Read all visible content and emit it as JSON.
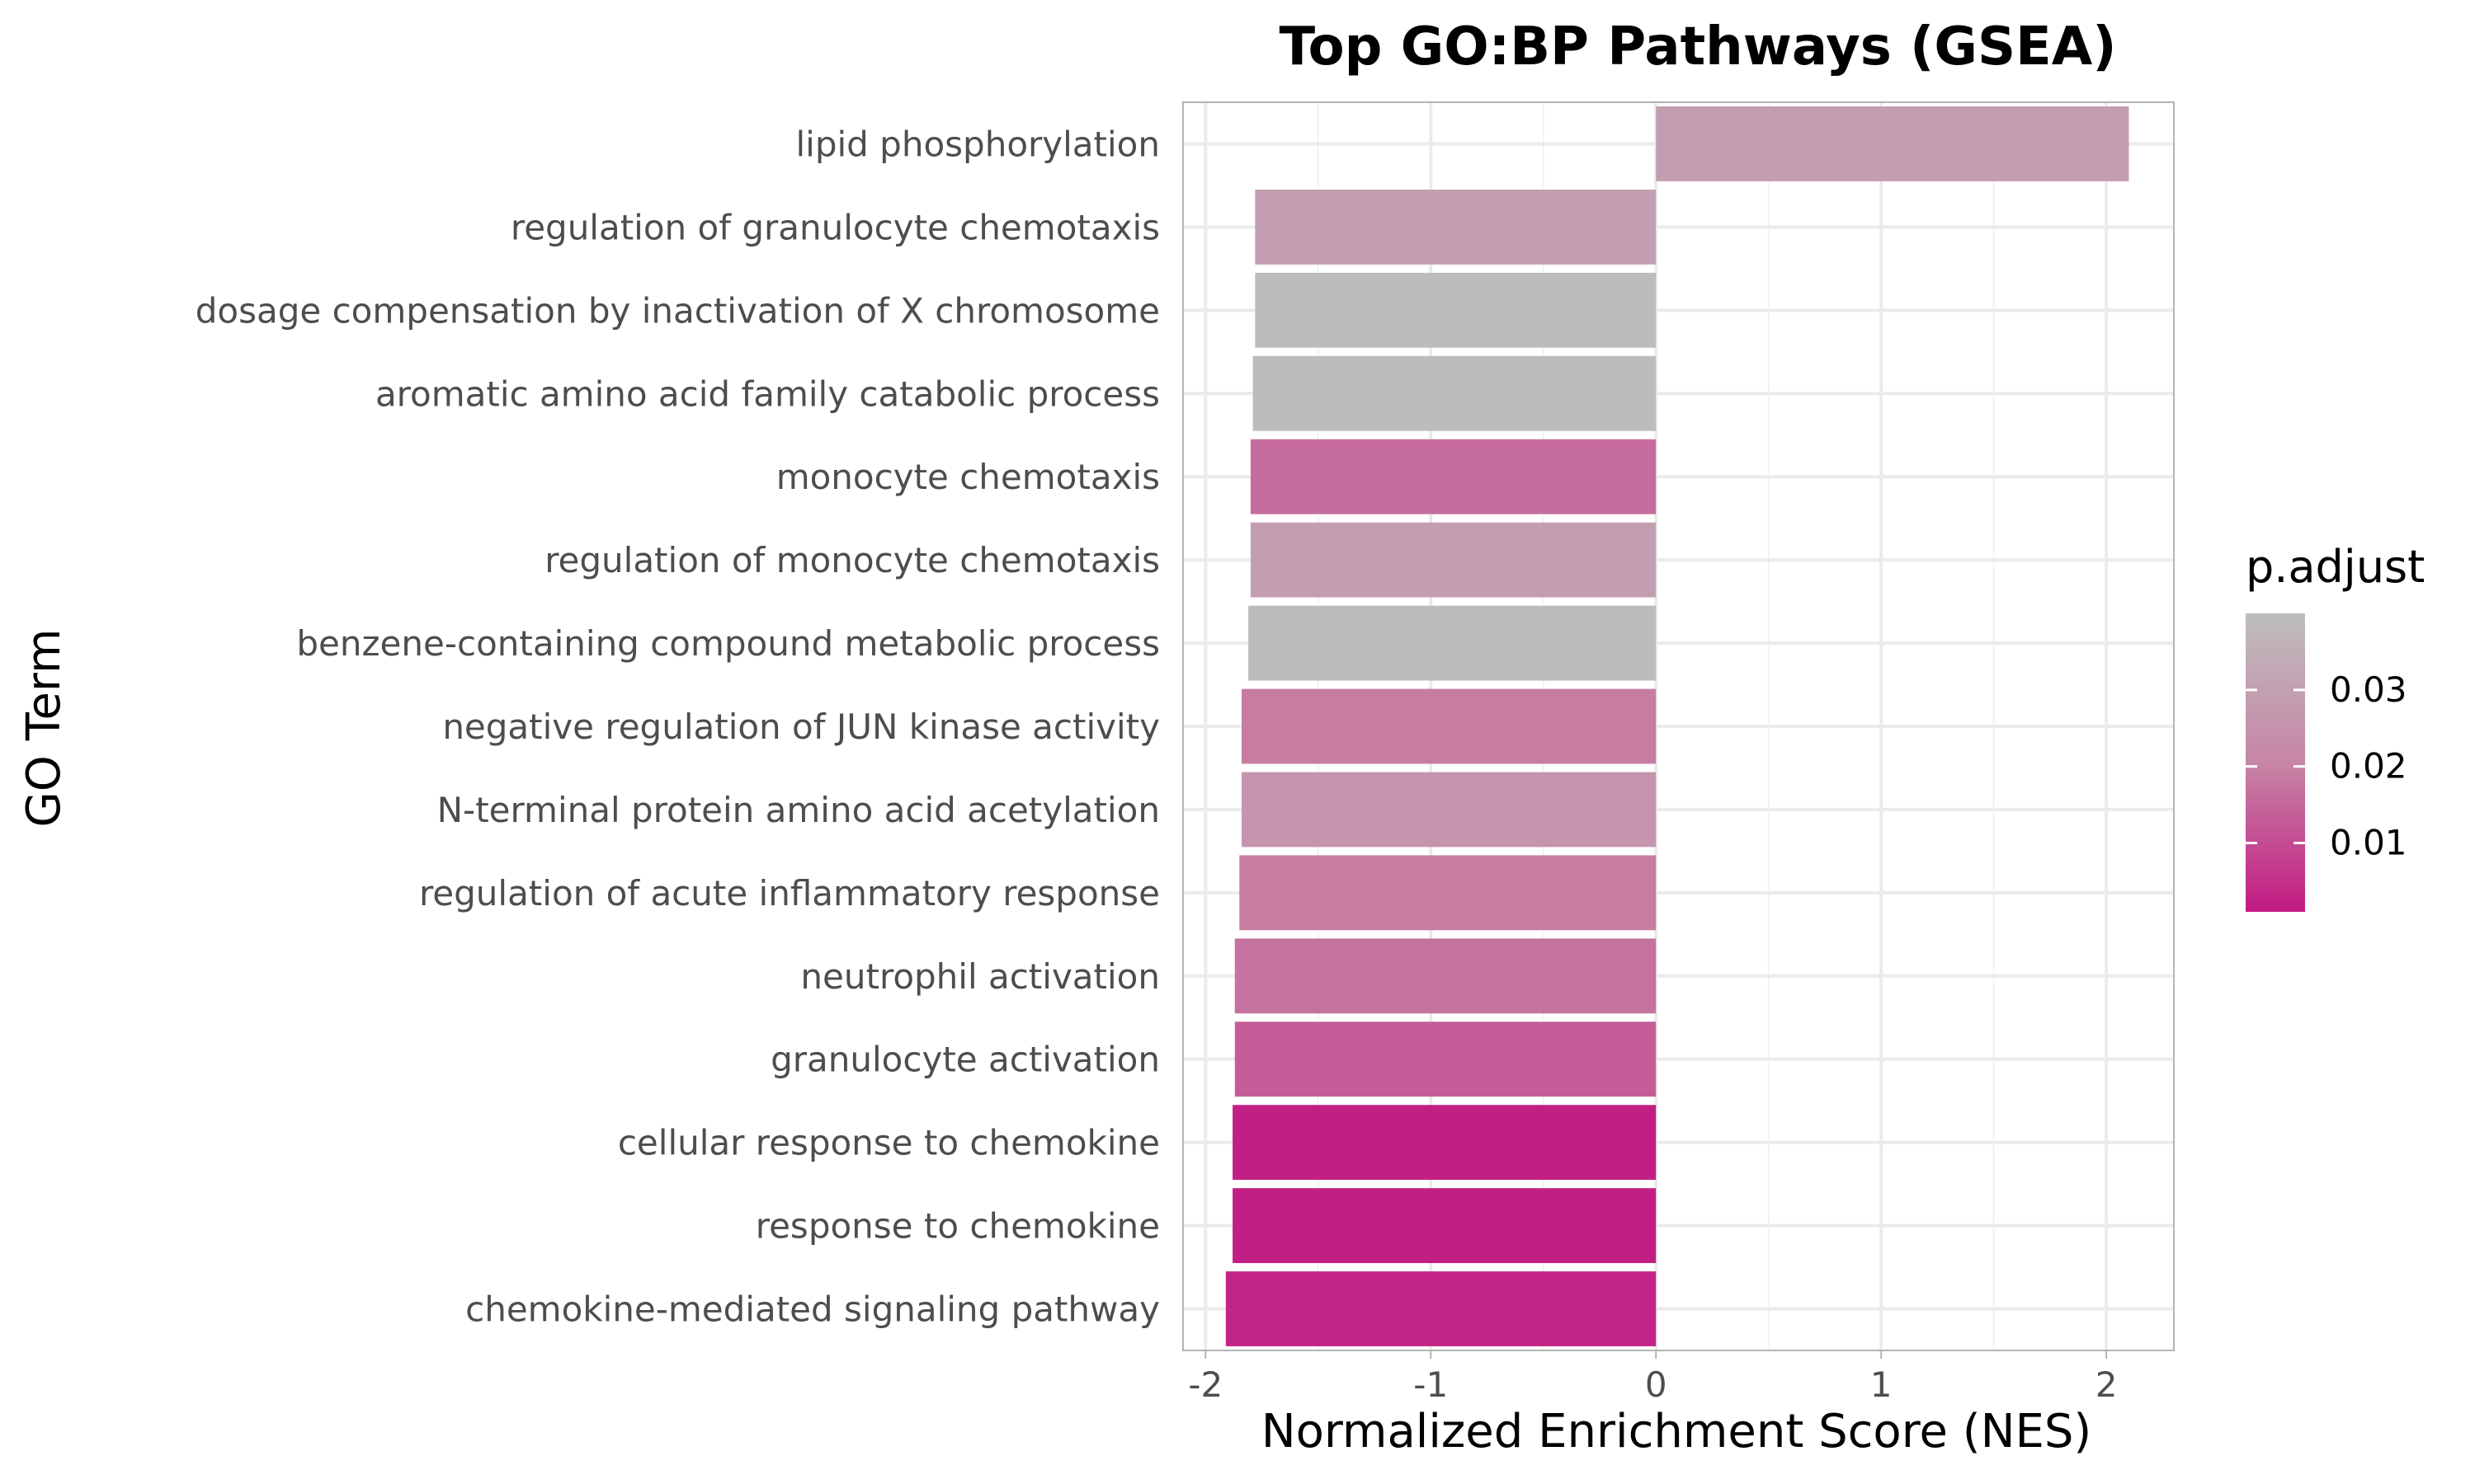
{
  "chart_data": {
    "type": "bar",
    "orientation": "horizontal",
    "title": "Top GO:BP Pathways (GSEA)",
    "xlabel": "Normalized Enrichment Score (NES)",
    "ylabel": "GO Term",
    "xlim": [
      -2.1,
      2.3
    ],
    "xticks": [
      -2,
      -1,
      0,
      1,
      2
    ],
    "xtick_labels": [
      "-2",
      "-1",
      "0",
      "1",
      "2"
    ],
    "grid": true,
    "categories": [
      "lipid phosphorylation",
      "regulation of granulocyte chemotaxis",
      "dosage compensation by inactivation of X chromosome",
      "aromatic amino acid family catabolic process",
      "monocyte chemotaxis",
      "regulation of monocyte chemotaxis",
      "benzene-containing compound metabolic process",
      "negative regulation of JUN kinase activity",
      "N-terminal protein amino acid acetylation",
      "regulation of acute inflammatory response",
      "neutrophil activation",
      "granulocyte activation",
      "cellular response to chemokine",
      "response to chemokine",
      "chemokine-mediated signaling pathway"
    ],
    "values": [
      2.1,
      -1.78,
      -1.78,
      -1.79,
      -1.8,
      -1.8,
      -1.81,
      -1.84,
      -1.84,
      -1.85,
      -1.87,
      -1.87,
      -1.88,
      -1.88,
      -1.91
    ],
    "p_adjust": [
      0.029,
      0.029,
      0.039,
      0.039,
      0.016,
      0.029,
      0.039,
      0.019,
      0.026,
      0.019,
      0.017,
      0.013,
      0.002,
      0.002,
      0.003
    ],
    "legend": {
      "title": "p.adjust",
      "position": "right",
      "ticks": [
        0.03,
        0.02,
        0.01
      ],
      "tick_labels": [
        "0.03",
        "0.02",
        "0.01"
      ],
      "range": [
        0.001,
        0.04
      ],
      "low_color": "#c21a82",
      "high_color": "#bebebe"
    }
  }
}
